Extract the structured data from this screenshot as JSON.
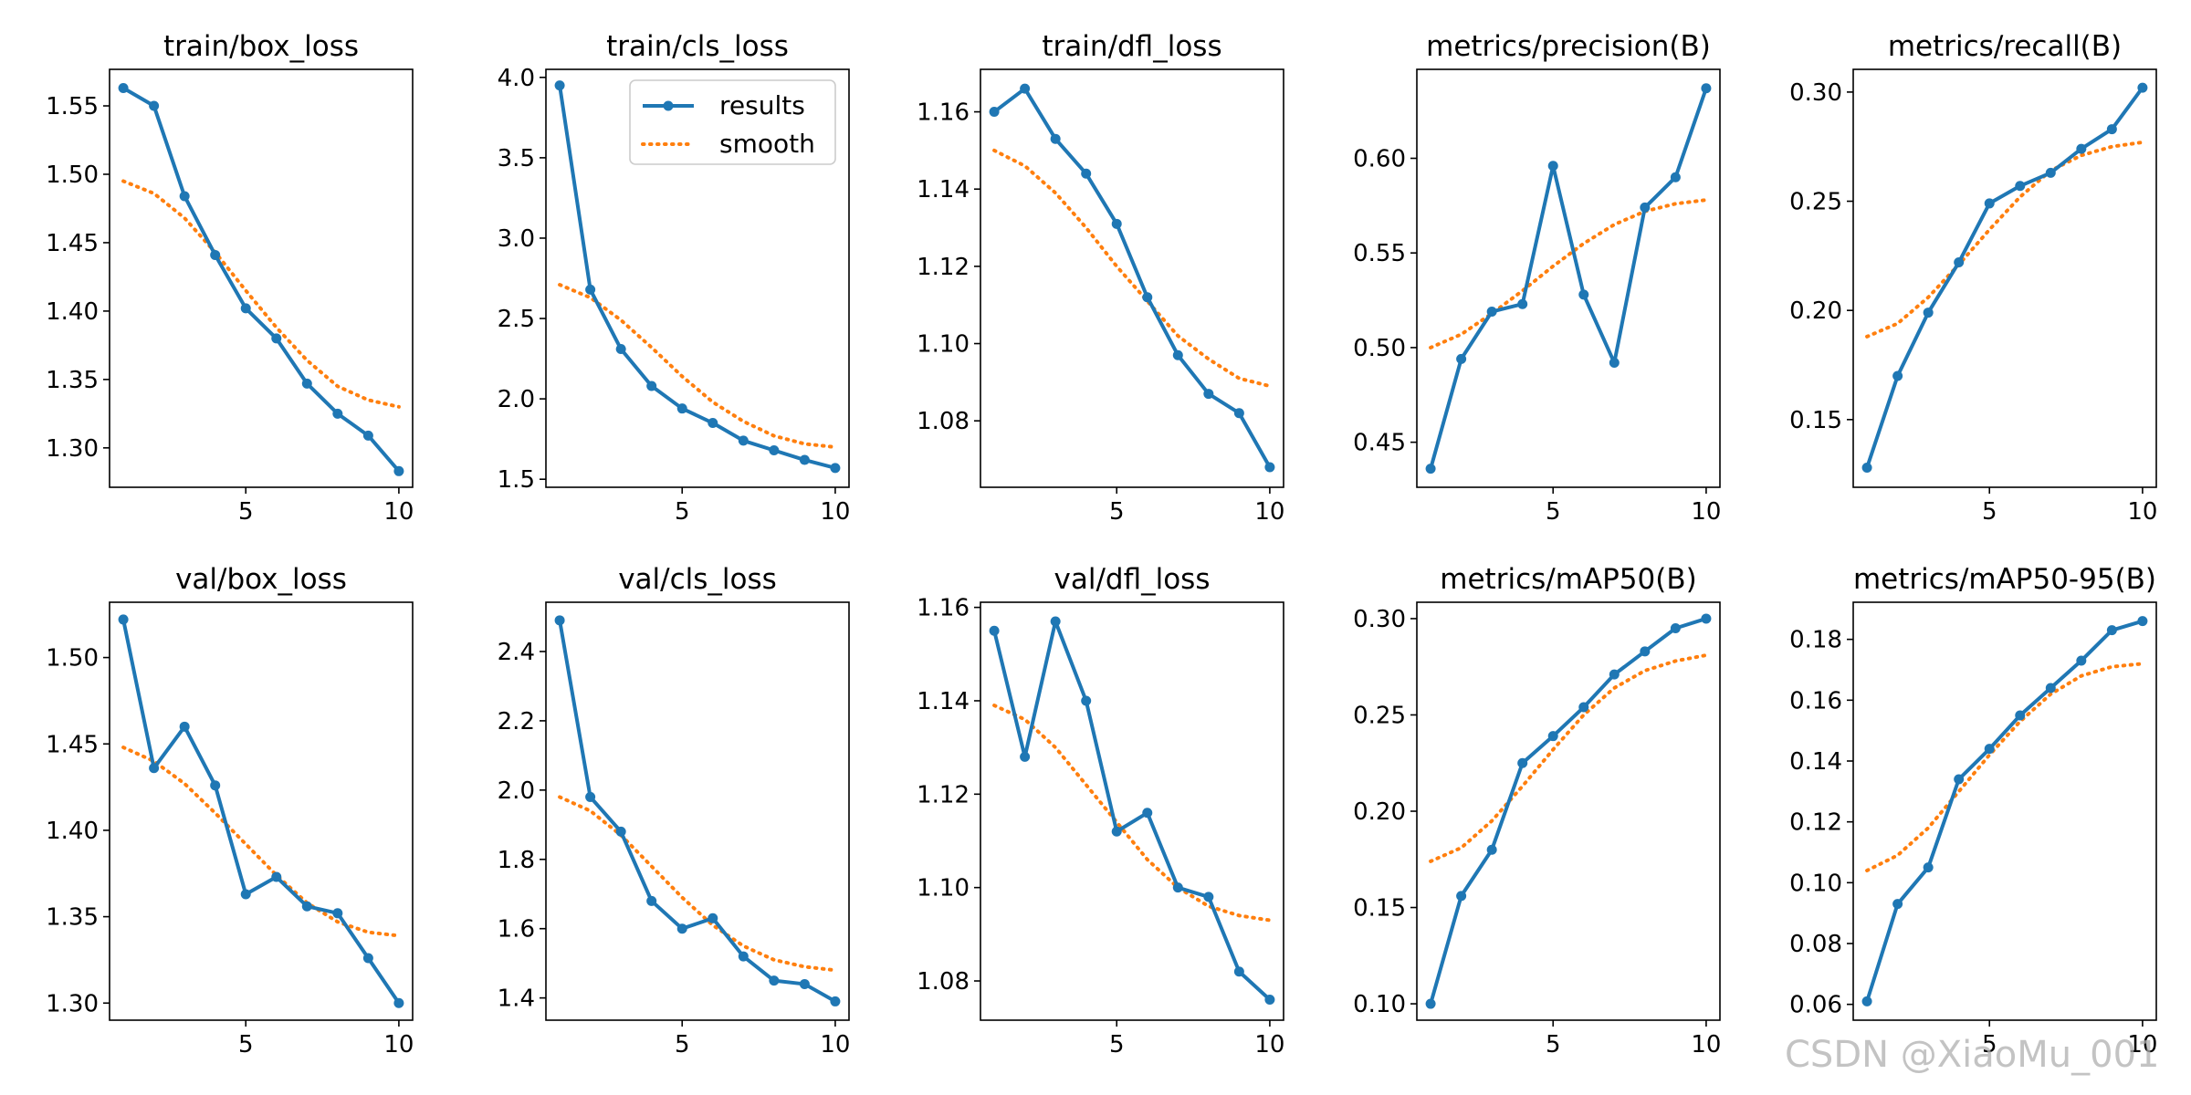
{
  "watermark": "CSDN @XiaoMu_001",
  "colors": {
    "results": "#1f77b4",
    "smooth": "#ff7f0e"
  },
  "legend": {
    "results_label": "results",
    "smooth_label": "smooth",
    "location": "upper-right of train/cls_loss"
  },
  "chart_data": [
    {
      "type": "line",
      "title": "train/box_loss",
      "x": [
        1,
        2,
        3,
        4,
        5,
        6,
        7,
        8,
        9,
        10
      ],
      "series": [
        {
          "name": "results",
          "values": [
            1.563,
            1.55,
            1.484,
            1.441,
            1.402,
            1.38,
            1.347,
            1.325,
            1.309,
            1.283
          ]
        },
        {
          "name": "smooth",
          "values": [
            1.495,
            1.486,
            1.468,
            1.443,
            1.415,
            1.388,
            1.364,
            1.345,
            1.335,
            1.33
          ]
        }
      ],
      "xlim": [
        0.55,
        10.45
      ],
      "ylim": [
        1.2712,
        1.5767
      ],
      "xticks": [
        5,
        10
      ],
      "yticks": [
        1.3,
        1.35,
        1.4,
        1.45,
        1.5,
        1.55
      ],
      "ytick_labels": [
        "1.30",
        "1.35",
        "1.40",
        "1.45",
        "1.50",
        "1.55"
      ]
    },
    {
      "type": "line",
      "title": "train/cls_loss",
      "x": [
        1,
        2,
        3,
        4,
        5,
        6,
        7,
        8,
        9,
        10
      ],
      "series": [
        {
          "name": "results",
          "values": [
            3.95,
            2.68,
            2.31,
            2.08,
            1.94,
            1.85,
            1.74,
            1.68,
            1.62,
            1.57
          ]
        },
        {
          "name": "smooth",
          "values": [
            2.71,
            2.63,
            2.49,
            2.32,
            2.14,
            1.98,
            1.86,
            1.77,
            1.72,
            1.7
          ]
        }
      ],
      "xlim": [
        0.55,
        10.45
      ],
      "ylim": [
        1.45,
        4.05
      ],
      "xticks": [
        5,
        10
      ],
      "yticks": [
        1.5,
        2.0,
        2.5,
        3.0,
        3.5,
        4.0
      ],
      "ytick_labels": [
        "1.5",
        "2.0",
        "2.5",
        "3.0",
        "3.5",
        "4.0"
      ]
    },
    {
      "type": "line",
      "title": "train/dfl_loss",
      "x": [
        1,
        2,
        3,
        4,
        5,
        6,
        7,
        8,
        9,
        10
      ],
      "series": [
        {
          "name": "results",
          "values": [
            1.16,
            1.166,
            1.153,
            1.144,
            1.131,
            1.112,
            1.097,
            1.087,
            1.082,
            1.068
          ]
        },
        {
          "name": "smooth",
          "values": [
            1.15,
            1.146,
            1.139,
            1.13,
            1.12,
            1.111,
            1.102,
            1.096,
            1.091,
            1.089
          ]
        }
      ],
      "xlim": [
        0.55,
        10.45
      ],
      "ylim": [
        1.0628,
        1.171
      ],
      "xticks": [
        5,
        10
      ],
      "yticks": [
        1.08,
        1.1,
        1.12,
        1.14,
        1.16
      ],
      "ytick_labels": [
        "1.08",
        "1.10",
        "1.12",
        "1.14",
        "1.16"
      ]
    },
    {
      "type": "line",
      "title": "metrics/precision(B)",
      "x": [
        1,
        2,
        3,
        4,
        5,
        6,
        7,
        8,
        9,
        10
      ],
      "series": [
        {
          "name": "results",
          "values": [
            0.436,
            0.494,
            0.519,
            0.523,
            0.596,
            0.528,
            0.492,
            0.574,
            0.59,
            0.637
          ]
        },
        {
          "name": "smooth",
          "values": [
            0.5,
            0.507,
            0.518,
            0.53,
            0.543,
            0.555,
            0.565,
            0.572,
            0.576,
            0.578
          ]
        }
      ],
      "xlim": [
        0.55,
        10.45
      ],
      "ylim": [
        0.4262,
        0.647
      ],
      "xticks": [
        5,
        10
      ],
      "yticks": [
        0.45,
        0.5,
        0.55,
        0.6
      ],
      "ytick_labels": [
        "0.45",
        "0.50",
        "0.55",
        "0.60"
      ]
    },
    {
      "type": "line",
      "title": "metrics/recall(B)",
      "x": [
        1,
        2,
        3,
        4,
        5,
        6,
        7,
        8,
        9,
        10
      ],
      "series": [
        {
          "name": "results",
          "values": [
            0.128,
            0.17,
            0.199,
            0.222,
            0.249,
            0.257,
            0.263,
            0.274,
            0.283,
            0.302
          ]
        },
        {
          "name": "smooth",
          "values": [
            0.188,
            0.194,
            0.206,
            0.221,
            0.237,
            0.252,
            0.264,
            0.271,
            0.275,
            0.277
          ]
        }
      ],
      "xlim": [
        0.55,
        10.45
      ],
      "ylim": [
        0.119,
        0.3104
      ],
      "xticks": [
        5,
        10
      ],
      "yticks": [
        0.15,
        0.2,
        0.25,
        0.3
      ],
      "ytick_labels": [
        "0.15",
        "0.20",
        "0.25",
        "0.30"
      ]
    },
    {
      "type": "line",
      "title": "val/box_loss",
      "x": [
        1,
        2,
        3,
        4,
        5,
        6,
        7,
        8,
        9,
        10
      ],
      "series": [
        {
          "name": "results",
          "values": [
            1.522,
            1.436,
            1.46,
            1.426,
            1.363,
            1.373,
            1.356,
            1.352,
            1.326,
            1.3
          ]
        },
        {
          "name": "smooth",
          "values": [
            1.448,
            1.44,
            1.427,
            1.41,
            1.392,
            1.374,
            1.358,
            1.347,
            1.341,
            1.339
          ]
        }
      ],
      "xlim": [
        0.55,
        10.45
      ],
      "ylim": [
        1.2901,
        1.532
      ],
      "xticks": [
        5,
        10
      ],
      "yticks": [
        1.3,
        1.35,
        1.4,
        1.45,
        1.5
      ],
      "ytick_labels": [
        "1.30",
        "1.35",
        "1.40",
        "1.45",
        "1.50"
      ]
    },
    {
      "type": "line",
      "title": "val/cls_loss",
      "x": [
        1,
        2,
        3,
        4,
        5,
        6,
        7,
        8,
        9,
        10
      ],
      "series": [
        {
          "name": "results",
          "values": [
            2.49,
            1.98,
            1.88,
            1.68,
            1.6,
            1.63,
            1.52,
            1.45,
            1.44,
            1.39
          ]
        },
        {
          "name": "smooth",
          "values": [
            1.98,
            1.94,
            1.87,
            1.78,
            1.69,
            1.61,
            1.55,
            1.51,
            1.49,
            1.48
          ]
        }
      ],
      "xlim": [
        0.55,
        10.45
      ],
      "ylim": [
        1.3358,
        2.5422
      ],
      "xticks": [
        5,
        10
      ],
      "yticks": [
        1.4,
        1.6,
        1.8,
        2.0,
        2.2,
        2.4
      ],
      "ytick_labels": [
        "1.4",
        "1.6",
        "1.8",
        "2.0",
        "2.2",
        "2.4"
      ]
    },
    {
      "type": "line",
      "title": "val/dfl_loss",
      "x": [
        1,
        2,
        3,
        4,
        5,
        6,
        7,
        8,
        9,
        10
      ],
      "series": [
        {
          "name": "results",
          "values": [
            1.155,
            1.128,
            1.157,
            1.14,
            1.112,
            1.116,
            1.1,
            1.098,
            1.082,
            1.076
          ]
        },
        {
          "name": "smooth",
          "values": [
            1.139,
            1.136,
            1.13,
            1.122,
            1.114,
            1.106,
            1.1,
            1.096,
            1.094,
            1.093
          ]
        }
      ],
      "xlim": [
        0.55,
        10.45
      ],
      "ylim": [
        1.0716,
        1.1611
      ],
      "xticks": [
        5,
        10
      ],
      "yticks": [
        1.08,
        1.1,
        1.12,
        1.14,
        1.16
      ],
      "ytick_labels": [
        "1.08",
        "1.10",
        "1.12",
        "1.14",
        "1.16"
      ]
    },
    {
      "type": "line",
      "title": "metrics/mAP50(B)",
      "x": [
        1,
        2,
        3,
        4,
        5,
        6,
        7,
        8,
        9,
        10
      ],
      "series": [
        {
          "name": "results",
          "values": [
            0.1,
            0.156,
            0.18,
            0.225,
            0.239,
            0.254,
            0.271,
            0.283,
            0.295,
            0.3
          ]
        },
        {
          "name": "smooth",
          "values": [
            0.174,
            0.181,
            0.195,
            0.213,
            0.232,
            0.25,
            0.264,
            0.273,
            0.278,
            0.281
          ]
        }
      ],
      "xlim": [
        0.55,
        10.45
      ],
      "ylim": [
        0.0915,
        0.3085
      ],
      "xticks": [
        5,
        10
      ],
      "yticks": [
        0.1,
        0.15,
        0.2,
        0.25,
        0.3
      ],
      "ytick_labels": [
        "0.10",
        "0.15",
        "0.20",
        "0.25",
        "0.30"
      ]
    },
    {
      "type": "line",
      "title": "metrics/mAP50-95(B)",
      "x": [
        1,
        2,
        3,
        4,
        5,
        6,
        7,
        8,
        9,
        10
      ],
      "series": [
        {
          "name": "results",
          "values": [
            0.061,
            0.093,
            0.105,
            0.134,
            0.144,
            0.155,
            0.164,
            0.173,
            0.183,
            0.186
          ]
        },
        {
          "name": "smooth",
          "values": [
            0.104,
            0.109,
            0.118,
            0.13,
            0.142,
            0.153,
            0.162,
            0.168,
            0.171,
            0.172
          ]
        }
      ],
      "xlim": [
        0.55,
        10.45
      ],
      "ylim": [
        0.0548,
        0.1922
      ],
      "xticks": [
        5,
        10
      ],
      "yticks": [
        0.06,
        0.08,
        0.1,
        0.12,
        0.14,
        0.16,
        0.18
      ],
      "ytick_labels": [
        "0.06",
        "0.08",
        "0.10",
        "0.12",
        "0.14",
        "0.16",
        "0.18"
      ]
    }
  ]
}
